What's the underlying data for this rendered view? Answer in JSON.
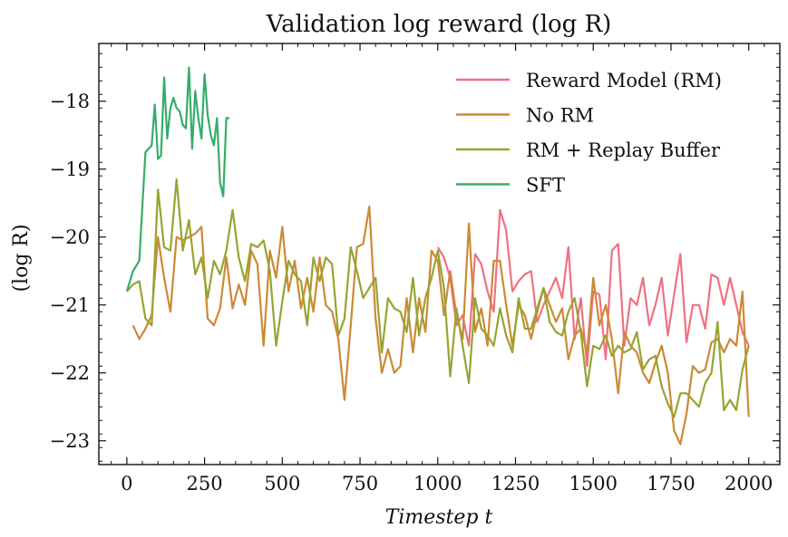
{
  "chart_data": {
    "type": "line",
    "title": "Validation log reward (log R)",
    "xlabel": "Timestep t",
    "ylabel": "(log R)",
    "xlim": [
      -90,
      2100
    ],
    "ylim": [
      -23.35,
      -17.15
    ],
    "xticks": [
      0,
      250,
      500,
      750,
      1000,
      1250,
      1500,
      1750,
      2000
    ],
    "xtick_labels": [
      "0",
      "250",
      "500",
      "750",
      "1000",
      "1250",
      "1500",
      "1750",
      "2000"
    ],
    "yticks": [
      -23,
      -22,
      -21,
      -20,
      -19,
      -18
    ],
    "ytick_labels": [
      "−23",
      "−22",
      "−21",
      "−20",
      "−19",
      "−18"
    ],
    "legend_position": "top-right",
    "grid": false,
    "series": [
      {
        "name": "Reward Model (RM)",
        "color": "#f07083",
        "x": [
          1000,
          1020,
          1040,
          1060,
          1080,
          1100,
          1120,
          1140,
          1160,
          1180,
          1200,
          1220,
          1240,
          1260,
          1280,
          1300,
          1320,
          1340,
          1360,
          1380,
          1400,
          1420,
          1440,
          1460,
          1480,
          1500,
          1520,
          1540,
          1560,
          1580,
          1600,
          1620,
          1640,
          1660,
          1680,
          1700,
          1720,
          1740,
          1760,
          1780,
          1800,
          1820,
          1840,
          1860,
          1880,
          1900,
          1920,
          1940,
          1960,
          1980,
          2000
        ],
        "y": [
          -20.15,
          -20.3,
          -20.6,
          -21.3,
          -21.15,
          -21.6,
          -20.25,
          -20.4,
          -20.8,
          -21.1,
          -19.6,
          -19.9,
          -20.8,
          -20.65,
          -20.55,
          -20.5,
          -21.25,
          -21.0,
          -20.8,
          -20.6,
          -20.9,
          -20.15,
          -21.5,
          -20.9,
          -21.9,
          -20.8,
          -20.85,
          -21.8,
          -20.2,
          -20.1,
          -21.6,
          -20.9,
          -21.0,
          -20.6,
          -21.3,
          -21.0,
          -20.6,
          -21.45,
          -20.85,
          -20.25,
          -21.55,
          -21.0,
          -21.0,
          -21.35,
          -20.55,
          -20.6,
          -21.0,
          -20.6,
          -21.0,
          -21.4,
          -21.6
        ]
      },
      {
        "name": "No RM",
        "color": "#cc8a35",
        "x": [
          20,
          40,
          60,
          80,
          100,
          120,
          140,
          160,
          180,
          200,
          220,
          240,
          260,
          280,
          300,
          320,
          340,
          360,
          380,
          400,
          420,
          440,
          460,
          480,
          500,
          520,
          540,
          560,
          580,
          600,
          620,
          640,
          660,
          680,
          700,
          720,
          740,
          760,
          780,
          800,
          820,
          840,
          860,
          880,
          900,
          920,
          940,
          960,
          980,
          1000,
          1020,
          1040,
          1060,
          1080,
          1100,
          1120,
          1140,
          1160,
          1180,
          1200,
          1220,
          1240,
          1260,
          1280,
          1300,
          1320,
          1340,
          1360,
          1380,
          1400,
          1420,
          1440,
          1460,
          1480,
          1500,
          1520,
          1540,
          1560,
          1580,
          1600,
          1620,
          1640,
          1660,
          1680,
          1700,
          1720,
          1740,
          1760,
          1780,
          1800,
          1820,
          1840,
          1860,
          1880,
          1900,
          1920,
          1940,
          1960,
          1980,
          2000
        ],
        "y": [
          -21.3,
          -21.5,
          -21.35,
          -21.15,
          -20.0,
          -20.6,
          -21.1,
          -20.0,
          -20.05,
          -20.0,
          -19.95,
          -19.85,
          -21.2,
          -21.3,
          -21.05,
          -20.3,
          -21.05,
          -20.7,
          -21.0,
          -20.2,
          -20.4,
          -21.6,
          -20.2,
          -20.6,
          -19.85,
          -20.8,
          -20.35,
          -21.05,
          -20.6,
          -21.1,
          -20.3,
          -21.0,
          -21.1,
          -21.5,
          -22.4,
          -21.3,
          -20.15,
          -20.1,
          -19.55,
          -21.2,
          -22.0,
          -21.65,
          -22.0,
          -21.9,
          -20.9,
          -21.7,
          -20.9,
          -21.4,
          -20.2,
          -20.35,
          -21.15,
          -20.5,
          -21.15,
          -21.5,
          -19.8,
          -21.4,
          -21.05,
          -21.6,
          -20.35,
          -20.35,
          -21.0,
          -21.6,
          -21.0,
          -21.15,
          -21.5,
          -21.1,
          -20.75,
          -21.0,
          -21.25,
          -21.05,
          -21.8,
          -21.45,
          -21.35,
          -21.7,
          -20.6,
          -21.3,
          -21.0,
          -21.5,
          -22.3,
          -21.4,
          -21.6,
          -21.7,
          -22.0,
          -22.15,
          -21.85,
          -21.6,
          -22.0,
          -22.85,
          -23.05,
          -22.6,
          -21.9,
          -22.0,
          -21.95,
          -21.55,
          -21.5,
          -21.7,
          -21.5,
          -21.6,
          -20.8,
          -22.65
        ]
      },
      {
        "name": "RM + Replay Buffer",
        "color": "#97a431",
        "x": [
          0,
          20,
          40,
          60,
          80,
          100,
          120,
          140,
          160,
          180,
          200,
          220,
          240,
          260,
          280,
          300,
          320,
          340,
          360,
          380,
          400,
          420,
          440,
          460,
          480,
          500,
          520,
          540,
          560,
          580,
          600,
          620,
          640,
          660,
          680,
          700,
          720,
          740,
          760,
          780,
          800,
          820,
          840,
          860,
          880,
          900,
          920,
          940,
          960,
          980,
          1000,
          1020,
          1040,
          1060,
          1080,
          1100,
          1120,
          1140,
          1160,
          1180,
          1200,
          1220,
          1240,
          1260,
          1280,
          1300,
          1320,
          1340,
          1360,
          1380,
          1400,
          1420,
          1440,
          1460,
          1480,
          1500,
          1520,
          1540,
          1560,
          1580,
          1600,
          1620,
          1640,
          1660,
          1680,
          1700,
          1720,
          1740,
          1760,
          1780,
          1800,
          1820,
          1840,
          1860,
          1880,
          1900,
          1920,
          1940,
          1960,
          1980,
          2000
        ],
        "y": [
          -20.8,
          -20.7,
          -20.65,
          -21.2,
          -21.3,
          -19.3,
          -20.15,
          -20.2,
          -19.15,
          -20.2,
          -19.75,
          -20.55,
          -20.3,
          -20.9,
          -20.35,
          -20.55,
          -20.2,
          -19.6,
          -20.3,
          -20.65,
          -20.1,
          -20.15,
          -20.05,
          -20.5,
          -21.6,
          -20.95,
          -20.35,
          -20.55,
          -20.65,
          -21.3,
          -20.3,
          -20.65,
          -20.3,
          -20.4,
          -21.45,
          -21.2,
          -20.15,
          -20.5,
          -20.9,
          -20.75,
          -20.6,
          -21.7,
          -20.9,
          -21.05,
          -21.1,
          -21.4,
          -20.6,
          -21.45,
          -20.9,
          -20.6,
          -20.2,
          -20.75,
          -22.05,
          -21.05,
          -21.6,
          -22.15,
          -20.9,
          -21.35,
          -21.45,
          -21.6,
          -21.05,
          -21.45,
          -21.7,
          -20.9,
          -21.35,
          -21.35,
          -21.05,
          -20.75,
          -21.25,
          -21.4,
          -21.45,
          -21.1,
          -20.9,
          -21.4,
          -22.2,
          -21.6,
          -21.65,
          -21.45,
          -21.75,
          -21.6,
          -21.7,
          -21.65,
          -21.4,
          -21.95,
          -21.8,
          -21.75,
          -22.2,
          -22.45,
          -22.65,
          -22.3,
          -22.3,
          -22.4,
          -22.5,
          -22.15,
          -22.0,
          -21.25,
          -22.55,
          -22.4,
          -22.55,
          -21.95,
          -21.6
        ]
      },
      {
        "name": "SFT",
        "color": "#36ad6a",
        "x": [
          0,
          20,
          40,
          60,
          80,
          90,
          100,
          110,
          120,
          130,
          140,
          150,
          160,
          170,
          180,
          190,
          200,
          210,
          220,
          230,
          240,
          250,
          260,
          270,
          280,
          290,
          300,
          310,
          320,
          330
        ],
        "y": [
          -20.8,
          -20.5,
          -20.35,
          -18.75,
          -18.65,
          -18.05,
          -18.85,
          -18.8,
          -17.65,
          -18.55,
          -18.1,
          -17.95,
          -18.1,
          -18.15,
          -18.35,
          -18.4,
          -17.5,
          -18.7,
          -17.85,
          -18.25,
          -18.55,
          -17.6,
          -18.2,
          -18.5,
          -18.65,
          -18.25,
          -19.2,
          -19.4,
          -18.25,
          -18.25
        ]
      }
    ]
  }
}
